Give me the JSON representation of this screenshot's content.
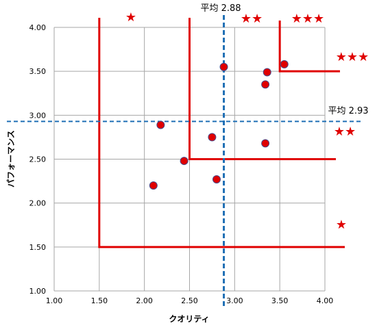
{
  "chart_data": {
    "type": "scatter",
    "xlabel": "クオリティ",
    "ylabel": "パフォーマンス",
    "xlim": [
      1.0,
      4.0
    ],
    "ylim": [
      1.0,
      4.0
    ],
    "x_ticks": [
      "1.00",
      "1.50",
      "2.00",
      "2.50",
      "3.00",
      "3.50",
      "4.00"
    ],
    "y_ticks": [
      "1.00",
      "1.50",
      "2.00",
      "2.50",
      "3.00",
      "3.50",
      "4.00"
    ],
    "grid": true,
    "points": [
      {
        "x": 2.1,
        "y": 2.2
      },
      {
        "x": 2.18,
        "y": 2.89
      },
      {
        "x": 2.44,
        "y": 2.48
      },
      {
        "x": 2.75,
        "y": 2.75
      },
      {
        "x": 2.8,
        "y": 2.27
      },
      {
        "x": 2.88,
        "y": 3.55
      },
      {
        "x": 3.34,
        "y": 2.68
      },
      {
        "x": 3.34,
        "y": 3.35
      },
      {
        "x": 3.36,
        "y": 3.49
      },
      {
        "x": 3.55,
        "y": 3.58
      }
    ],
    "mean_x": {
      "value": 2.88,
      "label": "平均 2.88"
    },
    "mean_y": {
      "value": 2.93,
      "label": "平均 2.93"
    },
    "thresholds": [
      {
        "x": 1.5,
        "y": 1.5
      },
      {
        "x": 2.5,
        "y": 2.5
      },
      {
        "x": 3.5,
        "y": 3.5
      }
    ],
    "ratings": [
      "★",
      "★★",
      "★★★"
    ],
    "colors": {
      "points": "#e00000",
      "thresholds": "#e00000",
      "mean_lines": "#1f6fb5",
      "grid": "#a6a6a6"
    }
  }
}
